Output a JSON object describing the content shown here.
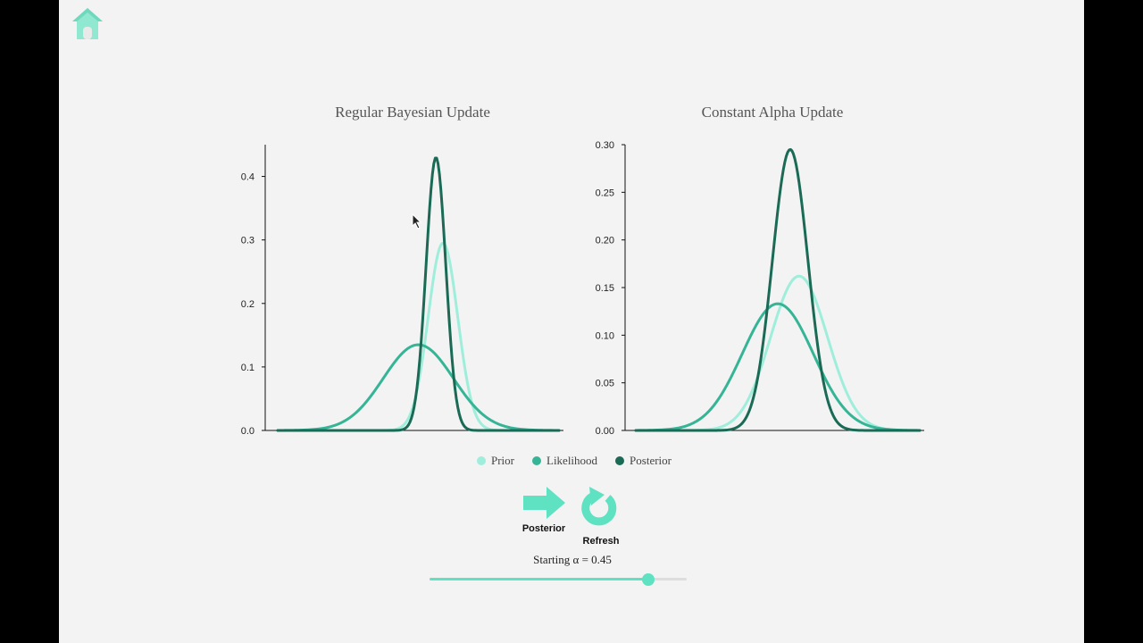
{
  "colors": {
    "prior": "#9eeedb",
    "likelihood": "#35b596",
    "posterior": "#1a6a55",
    "accent": "#5ee2c2",
    "axis": "#111111"
  },
  "icons": {
    "home": "home-icon",
    "next": "arrow-right-icon",
    "refresh": "refresh-icon"
  },
  "chart_data": [
    {
      "type": "line",
      "title": "Regular Bayesian Update",
      "xlabel": "",
      "ylabel": "",
      "xlim": [
        -4,
        4
      ],
      "ylim": [
        0,
        0.45
      ],
      "yticks": [
        "0.0",
        "0.1",
        "0.2",
        "0.3",
        "0.4"
      ],
      "ytick_values": [
        0,
        0.1,
        0.2,
        0.3,
        0.4
      ],
      "grid": false,
      "series": [
        {
          "name": "Prior",
          "distribution": "normal",
          "mean": 0.7,
          "sd": 0.42,
          "peak": 0.295
        },
        {
          "name": "Likelihood",
          "distribution": "normal",
          "mean": 0.0,
          "sd": 1.0,
          "peak": 0.135
        },
        {
          "name": "Posterior",
          "distribution": "normal",
          "mean": 0.5,
          "sd": 0.28,
          "peak": 0.43
        }
      ]
    },
    {
      "type": "line",
      "title": "Constant Alpha Update",
      "xlabel": "",
      "ylabel": "",
      "xlim": [
        -4,
        4
      ],
      "ylim": [
        0,
        0.3
      ],
      "yticks": [
        "0.00",
        "0.05",
        "0.10",
        "0.15",
        "0.20",
        "0.25",
        "0.30"
      ],
      "ytick_values": [
        0,
        0.05,
        0.1,
        0.15,
        0.2,
        0.25,
        0.3
      ],
      "grid": false,
      "series": [
        {
          "name": "Prior",
          "distribution": "normal",
          "mean": 0.6,
          "sd": 0.8,
          "peak": 0.162
        },
        {
          "name": "Likelihood",
          "distribution": "normal",
          "mean": 0.0,
          "sd": 1.0,
          "peak": 0.133
        },
        {
          "name": "Posterior",
          "distribution": "normal",
          "mean": 0.35,
          "sd": 0.5,
          "peak": 0.295
        }
      ]
    }
  ],
  "legend": [
    {
      "label": "Prior",
      "color": "#9eeedb"
    },
    {
      "label": "Likelihood",
      "color": "#35b596"
    },
    {
      "label": "Posterior",
      "color": "#1a6a55"
    }
  ],
  "controls": {
    "posterior_label": "Posterior",
    "refresh_label": "Refresh"
  },
  "slider": {
    "label": "Starting α = 0.45",
    "value": 0.45,
    "min": 0,
    "max": 0.53
  }
}
